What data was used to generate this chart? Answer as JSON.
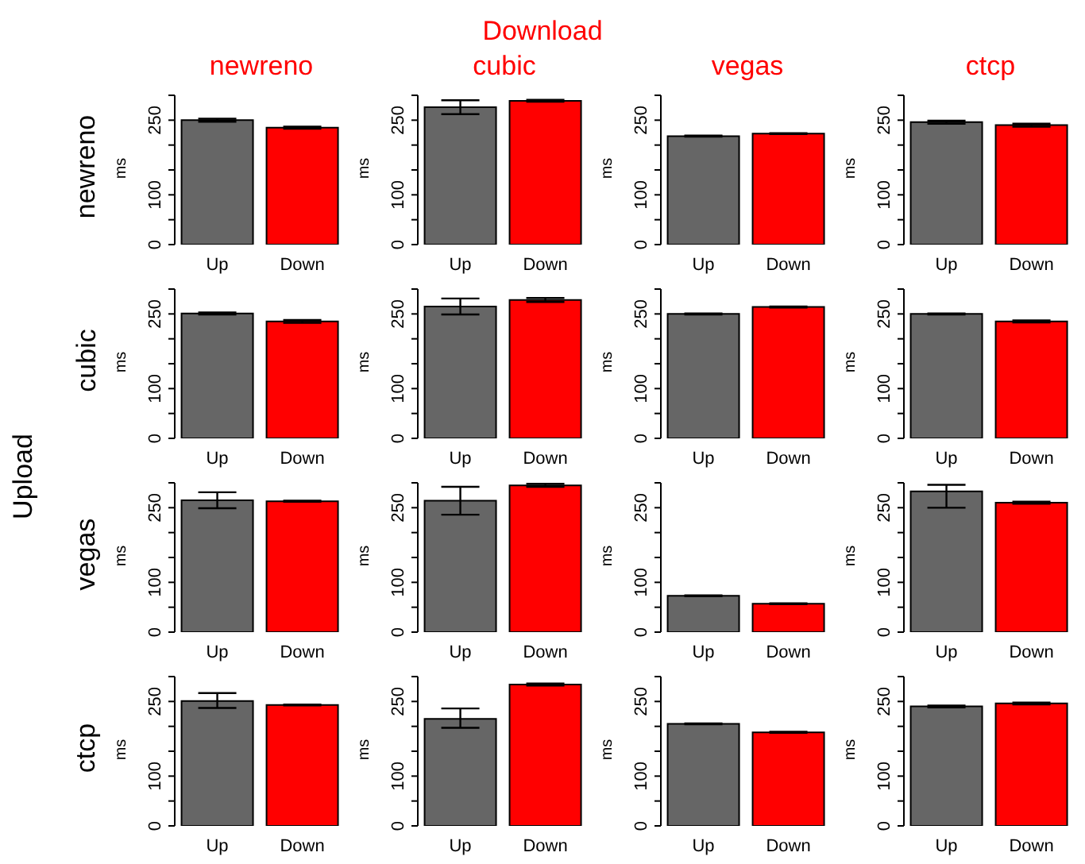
{
  "chart_data": [
    {
      "type": "bar",
      "title": "newreno",
      "ylabel": "ms",
      "annotations": [
        "Download",
        "Upload",
        "newreno"
      ],
      "categories": [
        "Up",
        "Down"
      ],
      "values": [
        250,
        235
      ],
      "errors": [
        3,
        2
      ],
      "colors": [
        "#666666",
        "#ff0000"
      ],
      "ylim": [
        0,
        300
      ],
      "yticks": [
        0,
        {
          "value": 50,
          "label": null
        },
        100,
        {
          "value": 150,
          "label": null
        },
        {
          "value": 200,
          "label": null
        },
        250,
        {
          "value": 300,
          "label": null
        }
      ]
    },
    {
      "type": "bar",
      "title": "cubic",
      "ylabel": "ms",
      "categories": [
        "Up",
        "Down"
      ],
      "values": [
        276,
        289
      ],
      "errors": [
        [
          262,
          290
        ],
        2
      ],
      "colors": [
        "#666666",
        "#ff0000"
      ],
      "ylim": [
        0,
        300
      ],
      "yticks": [
        0,
        {
          "value": 50,
          "label": null
        },
        100,
        {
          "value": 150,
          "label": null
        },
        {
          "value": 200,
          "label": null
        },
        250,
        {
          "value": 300,
          "label": null
        }
      ]
    },
    {
      "type": "bar",
      "title": "vegas",
      "ylabel": "ms",
      "categories": [
        "Up",
        "Down"
      ],
      "values": [
        218,
        223
      ],
      "errors": [
        1,
        1
      ],
      "colors": [
        "#666666",
        "#ff0000"
      ],
      "ylim": [
        0,
        300
      ],
      "yticks": [
        0,
        {
          "value": 50,
          "label": null
        },
        100,
        {
          "value": 150,
          "label": null
        },
        {
          "value": 200,
          "label": null
        },
        250,
        {
          "value": 300,
          "label": null
        }
      ]
    },
    {
      "type": "bar",
      "title": "ctcp",
      "ylabel": "ms",
      "categories": [
        "Up",
        "Down"
      ],
      "values": [
        246,
        240
      ],
      "errors": [
        3,
        3
      ],
      "colors": [
        "#666666",
        "#ff0000"
      ],
      "ylim": [
        0,
        300
      ],
      "yticks": [
        0,
        {
          "value": 50,
          "label": null
        },
        100,
        {
          "value": 150,
          "label": null
        },
        {
          "value": 200,
          "label": null
        },
        250,
        {
          "value": 300,
          "label": null
        }
      ]
    },
    {
      "type": "bar",
      "ylabel": "ms",
      "annotations": [
        "cubic"
      ],
      "categories": [
        "Up",
        "Down"
      ],
      "values": [
        251,
        235
      ],
      "errors": [
        2,
        3
      ],
      "colors": [
        "#666666",
        "#ff0000"
      ],
      "ylim": [
        0,
        300
      ],
      "yticks": [
        0,
        {
          "value": 50,
          "label": null
        },
        100,
        {
          "value": 150,
          "label": null
        },
        {
          "value": 200,
          "label": null
        },
        250,
        {
          "value": 300,
          "label": null
        }
      ]
    },
    {
      "type": "bar",
      "ylabel": "ms",
      "categories": [
        "Up",
        "Down"
      ],
      "values": [
        265,
        278
      ],
      "errors": [
        [
          249,
          281
        ],
        4
      ],
      "colors": [
        "#666666",
        "#ff0000"
      ],
      "ylim": [
        0,
        300
      ],
      "yticks": [
        0,
        {
          "value": 50,
          "label": null
        },
        100,
        {
          "value": 150,
          "label": null
        },
        {
          "value": 200,
          "label": null
        },
        250,
        {
          "value": 300,
          "label": null
        }
      ]
    },
    {
      "type": "bar",
      "ylabel": "ms",
      "categories": [
        "Up",
        "Down"
      ],
      "values": [
        250,
        264
      ],
      "errors": [
        1,
        1
      ],
      "colors": [
        "#666666",
        "#ff0000"
      ],
      "ylim": [
        0,
        300
      ],
      "yticks": [
        0,
        {
          "value": 50,
          "label": null
        },
        100,
        {
          "value": 150,
          "label": null
        },
        {
          "value": 200,
          "label": null
        },
        250,
        {
          "value": 300,
          "label": null
        }
      ]
    },
    {
      "type": "bar",
      "ylabel": "ms",
      "categories": [
        "Up",
        "Down"
      ],
      "values": [
        250,
        235
      ],
      "errors": [
        1,
        2
      ],
      "colors": [
        "#666666",
        "#ff0000"
      ],
      "ylim": [
        0,
        300
      ],
      "yticks": [
        0,
        {
          "value": 50,
          "label": null
        },
        100,
        {
          "value": 150,
          "label": null
        },
        {
          "value": 200,
          "label": null
        },
        250,
        {
          "value": 300,
          "label": null
        }
      ]
    },
    {
      "type": "bar",
      "ylabel": "ms",
      "annotations": [
        "vegas"
      ],
      "categories": [
        "Up",
        "Down"
      ],
      "values": [
        265,
        263
      ],
      "errors": [
        [
          249,
          281
        ],
        1
      ],
      "colors": [
        "#666666",
        "#ff0000"
      ],
      "ylim": [
        0,
        300
      ],
      "yticks": [
        0,
        {
          "value": 50,
          "label": null
        },
        100,
        {
          "value": 150,
          "label": null
        },
        {
          "value": 200,
          "label": null
        },
        250,
        {
          "value": 300,
          "label": null
        }
      ]
    },
    {
      "type": "bar",
      "ylabel": "ms",
      "categories": [
        "Up",
        "Down"
      ],
      "values": [
        264,
        295
      ],
      "errors": [
        [
          236,
          292
        ],
        3
      ],
      "colors": [
        "#666666",
        "#ff0000"
      ],
      "ylim": [
        0,
        300
      ],
      "yticks": [
        0,
        {
          "value": 50,
          "label": null
        },
        100,
        {
          "value": 150,
          "label": null
        },
        {
          "value": 200,
          "label": null
        },
        250,
        {
          "value": 300,
          "label": null
        }
      ]
    },
    {
      "type": "bar",
      "ylabel": "ms",
      "categories": [
        "Up",
        "Down"
      ],
      "values": [
        73,
        57
      ],
      "errors": [
        1,
        1
      ],
      "colors": [
        "#666666",
        "#ff0000"
      ],
      "ylim": [
        0,
        300
      ],
      "yticks": [
        0,
        {
          "value": 50,
          "label": null
        },
        100,
        {
          "value": 150,
          "label": null
        },
        {
          "value": 200,
          "label": null
        },
        250,
        {
          "value": 300,
          "label": null
        }
      ]
    },
    {
      "type": "bar",
      "ylabel": "ms",
      "categories": [
        "Up",
        "Down"
      ],
      "values": [
        283,
        260
      ],
      "errors": [
        [
          250,
          296
        ],
        2
      ],
      "colors": [
        "#666666",
        "#ff0000"
      ],
      "ylim": [
        0,
        300
      ],
      "yticks": [
        0,
        {
          "value": 50,
          "label": null
        },
        100,
        {
          "value": 150,
          "label": null
        },
        {
          "value": 200,
          "label": null
        },
        250,
        {
          "value": 300,
          "label": null
        }
      ]
    },
    {
      "type": "bar",
      "ylabel": "ms",
      "annotations": [
        "ctcp"
      ],
      "categories": [
        "Up",
        "Down"
      ],
      "values": [
        251,
        243
      ],
      "errors": [
        [
          237,
          267
        ],
        1
      ],
      "colors": [
        "#666666",
        "#ff0000"
      ],
      "ylim": [
        0,
        300
      ],
      "yticks": [
        0,
        {
          "value": 50,
          "label": null
        },
        100,
        {
          "value": 150,
          "label": null
        },
        {
          "value": 200,
          "label": null
        },
        250,
        {
          "value": 300,
          "label": null
        }
      ]
    },
    {
      "type": "bar",
      "ylabel": "ms",
      "categories": [
        "Up",
        "Down"
      ],
      "values": [
        215,
        284
      ],
      "errors": [
        [
          197,
          236
        ],
        2
      ],
      "colors": [
        "#666666",
        "#ff0000"
      ],
      "ylim": [
        0,
        300
      ],
      "yticks": [
        0,
        {
          "value": 50,
          "label": null
        },
        100,
        {
          "value": 150,
          "label": null
        },
        {
          "value": 200,
          "label": null
        },
        250,
        {
          "value": 300,
          "label": null
        }
      ]
    },
    {
      "type": "bar",
      "ylabel": "ms",
      "categories": [
        "Up",
        "Down"
      ],
      "values": [
        205,
        188
      ],
      "errors": [
        1,
        1
      ],
      "colors": [
        "#666666",
        "#ff0000"
      ],
      "ylim": [
        0,
        300
      ],
      "yticks": [
        0,
        {
          "value": 50,
          "label": null
        },
        100,
        {
          "value": 150,
          "label": null
        },
        {
          "value": 200,
          "label": null
        },
        250,
        {
          "value": 300,
          "label": null
        }
      ]
    },
    {
      "type": "bar",
      "ylabel": "ms",
      "categories": [
        "Up",
        "Down"
      ],
      "values": [
        240,
        246
      ],
      "errors": [
        2,
        2
      ],
      "colors": [
        "#666666",
        "#ff0000"
      ],
      "ylim": [
        0,
        300
      ],
      "yticks": [
        0,
        {
          "value": 50,
          "label": null
        },
        100,
        {
          "value": 150,
          "label": null
        },
        {
          "value": 200,
          "label": null
        },
        250,
        {
          "value": 300,
          "label": null
        }
      ]
    }
  ]
}
